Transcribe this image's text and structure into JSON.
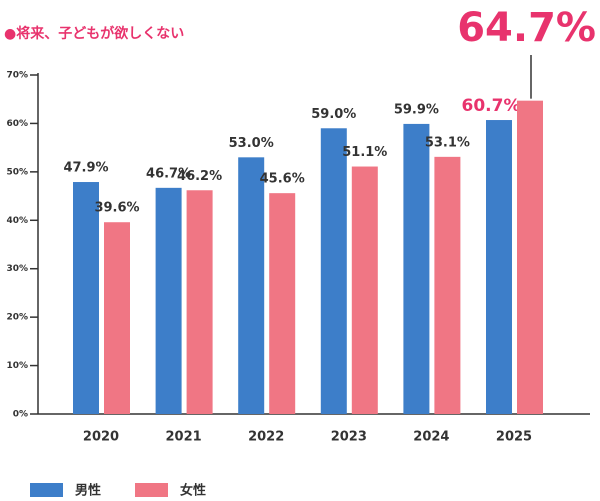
{
  "chart_data": {
    "type": "bar",
    "title": "●将来、子どもが欲しくない",
    "title_color": "#e8336d",
    "categories": [
      "2020",
      "2021",
      "2022",
      "2023",
      "2024",
      "2025"
    ],
    "series": [
      {
        "name": "男性",
        "color": "#3d7ec9",
        "values": [
          47.9,
          46.7,
          53.0,
          59.0,
          59.9,
          60.7
        ],
        "value_labels": [
          "47.9%",
          "46.7%",
          "53.0%",
          "59.0%",
          "59.9%",
          "60.7%"
        ]
      },
      {
        "name": "女性",
        "color": "#f07684",
        "values": [
          39.6,
          46.2,
          45.6,
          51.1,
          53.1,
          64.7
        ],
        "value_labels": [
          "39.6%",
          "46.2%",
          "45.6%",
          "51.1%",
          "53.1%",
          "64.7%"
        ]
      }
    ],
    "ylim": [
      0,
      70
    ],
    "yticks": [
      {
        "value": 0,
        "label": "0%"
      },
      {
        "value": 10,
        "label": "10%"
      },
      {
        "value": 20,
        "label": "20%"
      },
      {
        "value": 30,
        "label": "30%"
      },
      {
        "value": 40,
        "label": "40%"
      },
      {
        "value": 50,
        "label": "50%"
      },
      {
        "value": 60,
        "label": "60%"
      },
      {
        "value": 70,
        "label": "70%"
      }
    ],
    "grid": false,
    "legend": "bottom-left"
  }
}
